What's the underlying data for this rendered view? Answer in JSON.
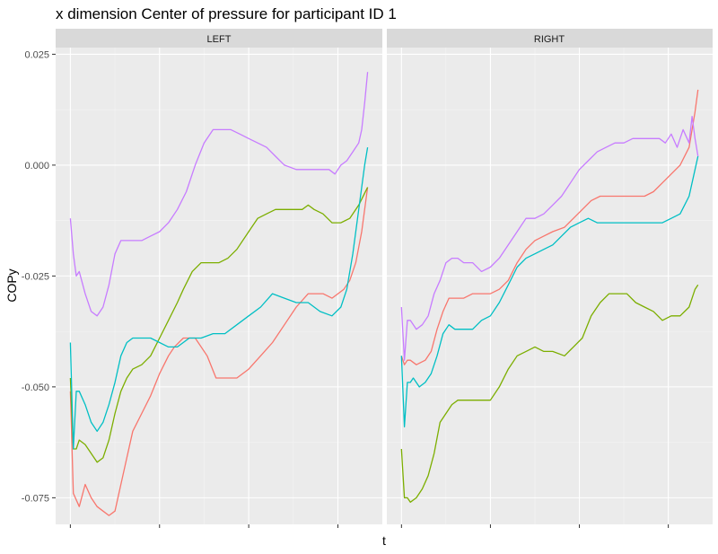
{
  "chart_data": {
    "type": "line",
    "title": "x dimension Center of pressure for participant ID 1",
    "xlabel": "t",
    "ylabel": "COPy",
    "ylim": [
      -0.081,
      0.0265
    ],
    "xlim": [
      0,
      100
    ],
    "y_ticks": [
      0.025,
      0.0,
      -0.025,
      -0.05,
      -0.075
    ],
    "y_tick_labels": [
      "0.025",
      "0.000",
      "-0.025",
      "-0.050",
      "-0.075"
    ],
    "x_ticks": [
      0,
      30,
      60,
      90
    ],
    "grid": true,
    "legend": "none",
    "series_colors": [
      "#F8766D",
      "#7CAE00",
      "#00BFC4",
      "#C77CFF"
    ],
    "panels": [
      {
        "label": "LEFT",
        "series": [
          {
            "color": "#F8766D",
            "x": [
              0,
              1,
              3,
              5,
              7,
              9,
              11,
              13,
              15,
              17,
              19,
              21,
              24,
              27,
              30,
              33,
              35,
              38,
              42,
              46,
              49,
              52,
              56,
              60,
              64,
              68,
              72,
              76,
              80,
              85,
              88,
              92,
              94,
              96,
              98,
              100
            ],
            "y": [
              -0.051,
              -0.074,
              -0.077,
              -0.072,
              -0.075,
              -0.077,
              -0.078,
              -0.079,
              -0.078,
              -0.072,
              -0.066,
              -0.06,
              -0.056,
              -0.052,
              -0.047,
              -0.043,
              -0.041,
              -0.039,
              -0.039,
              -0.043,
              -0.048,
              -0.048,
              -0.048,
              -0.046,
              -0.043,
              -0.04,
              -0.036,
              -0.032,
              -0.029,
              -0.029,
              -0.03,
              -0.028,
              -0.026,
              -0.022,
              -0.015,
              -0.005
            ]
          },
          {
            "color": "#7CAE00",
            "x": [
              0,
              1,
              2,
              3,
              5,
              7,
              9,
              11,
              13,
              15,
              17,
              19,
              21,
              24,
              27,
              30,
              33,
              36,
              38,
              41,
              44,
              47,
              50,
              53,
              56,
              60,
              63,
              66,
              69,
              72,
              75,
              78,
              80,
              82,
              85,
              88,
              91,
              94,
              97,
              100
            ],
            "y": [
              -0.048,
              -0.064,
              -0.064,
              -0.062,
              -0.063,
              -0.065,
              -0.067,
              -0.066,
              -0.062,
              -0.056,
              -0.051,
              -0.048,
              -0.046,
              -0.045,
              -0.043,
              -0.039,
              -0.035,
              -0.031,
              -0.028,
              -0.024,
              -0.022,
              -0.022,
              -0.022,
              -0.021,
              -0.019,
              -0.015,
              -0.012,
              -0.011,
              -0.01,
              -0.01,
              -0.01,
              -0.01,
              -0.009,
              -0.01,
              -0.011,
              -0.013,
              -0.013,
              -0.012,
              -0.009,
              -0.005
            ]
          },
          {
            "color": "#00BFC4",
            "x": [
              0,
              1,
              2,
              3,
              5,
              7,
              9,
              11,
              13,
              15,
              17,
              19,
              21,
              24,
              27,
              30,
              33,
              36,
              40,
              44,
              48,
              52,
              56,
              60,
              64,
              68,
              72,
              76,
              80,
              84,
              88,
              91,
              93,
              95,
              97,
              99,
              100
            ],
            "y": [
              -0.04,
              -0.064,
              -0.051,
              -0.051,
              -0.054,
              -0.058,
              -0.06,
              -0.058,
              -0.054,
              -0.049,
              -0.043,
              -0.04,
              -0.039,
              -0.039,
              -0.039,
              -0.04,
              -0.041,
              -0.041,
              -0.039,
              -0.039,
              -0.038,
              -0.038,
              -0.036,
              -0.034,
              -0.032,
              -0.029,
              -0.03,
              -0.031,
              -0.031,
              -0.033,
              -0.034,
              -0.032,
              -0.028,
              -0.02,
              -0.01,
              0.0,
              0.004
            ]
          },
          {
            "color": "#C77CFF",
            "x": [
              0,
              1,
              2,
              3,
              5,
              7,
              9,
              11,
              13,
              15,
              17,
              19,
              21,
              24,
              27,
              30,
              33,
              36,
              39,
              42,
              45,
              48,
              51,
              54,
              57,
              60,
              63,
              66,
              69,
              72,
              76,
              80,
              84,
              87,
              89,
              91,
              93,
              95,
              97,
              98,
              99,
              100
            ],
            "y": [
              -0.012,
              -0.02,
              -0.025,
              -0.024,
              -0.029,
              -0.033,
              -0.034,
              -0.032,
              -0.027,
              -0.02,
              -0.017,
              -0.017,
              -0.017,
              -0.017,
              -0.016,
              -0.015,
              -0.013,
              -0.01,
              -0.006,
              0.0,
              0.005,
              0.008,
              0.008,
              0.008,
              0.007,
              0.006,
              0.005,
              0.004,
              0.002,
              0.0,
              -0.001,
              -0.001,
              -0.001,
              -0.001,
              -0.002,
              0.0,
              0.001,
              0.003,
              0.005,
              0.008,
              0.014,
              0.021
            ]
          }
        ]
      },
      {
        "label": "RIGHT",
        "series": [
          {
            "color": "#F8766D",
            "x": [
              0,
              1,
              2,
              3,
              5,
              8,
              10,
              12,
              14,
              16,
              18,
              21,
              24,
              27,
              30,
              33,
              36,
              39,
              42,
              45,
              48,
              51,
              55,
              58,
              61,
              64,
              67,
              70,
              73,
              76,
              79,
              82,
              85,
              88,
              91,
              94,
              97,
              99,
              100
            ],
            "y": [
              -0.043,
              -0.045,
              -0.044,
              -0.044,
              -0.045,
              -0.044,
              -0.042,
              -0.037,
              -0.033,
              -0.03,
              -0.03,
              -0.03,
              -0.029,
              -0.029,
              -0.029,
              -0.028,
              -0.026,
              -0.022,
              -0.019,
              -0.017,
              -0.016,
              -0.015,
              -0.014,
              -0.012,
              -0.01,
              -0.008,
              -0.007,
              -0.007,
              -0.007,
              -0.007,
              -0.007,
              -0.007,
              -0.006,
              -0.004,
              -0.002,
              0.0,
              0.004,
              0.012,
              0.017
            ]
          },
          {
            "color": "#7CAE00",
            "x": [
              0,
              1,
              2,
              3,
              5,
              7,
              9,
              11,
              13,
              15,
              17,
              19,
              21,
              24,
              27,
              30,
              33,
              36,
              39,
              42,
              45,
              48,
              51,
              55,
              58,
              61,
              64,
              67,
              70,
              73,
              76,
              79,
              82,
              85,
              88,
              91,
              94,
              97,
              99,
              100
            ],
            "y": [
              -0.064,
              -0.075,
              -0.075,
              -0.076,
              -0.075,
              -0.073,
              -0.07,
              -0.065,
              -0.058,
              -0.056,
              -0.054,
              -0.053,
              -0.053,
              -0.053,
              -0.053,
              -0.053,
              -0.05,
              -0.046,
              -0.043,
              -0.042,
              -0.041,
              -0.042,
              -0.042,
              -0.043,
              -0.041,
              -0.039,
              -0.034,
              -0.031,
              -0.029,
              -0.029,
              -0.029,
              -0.031,
              -0.032,
              -0.033,
              -0.035,
              -0.034,
              -0.034,
              -0.032,
              -0.028,
              -0.027
            ]
          },
          {
            "color": "#00BFC4",
            "x": [
              0,
              1,
              2,
              3,
              4,
              6,
              8,
              10,
              12,
              14,
              16,
              18,
              21,
              24,
              27,
              30,
              33,
              36,
              39,
              42,
              45,
              48,
              51,
              54,
              57,
              60,
              63,
              66,
              69,
              72,
              76,
              80,
              84,
              88,
              91,
              94,
              97,
              99,
              100
            ],
            "y": [
              -0.043,
              -0.059,
              -0.049,
              -0.049,
              -0.048,
              -0.05,
              -0.049,
              -0.047,
              -0.043,
              -0.038,
              -0.036,
              -0.037,
              -0.037,
              -0.037,
              -0.035,
              -0.034,
              -0.031,
              -0.027,
              -0.023,
              -0.021,
              -0.02,
              -0.019,
              -0.018,
              -0.016,
              -0.014,
              -0.013,
              -0.012,
              -0.013,
              -0.013,
              -0.013,
              -0.013,
              -0.013,
              -0.013,
              -0.013,
              -0.012,
              -0.011,
              -0.007,
              -0.001,
              0.002
            ]
          },
          {
            "color": "#C77CFF",
            "x": [
              0,
              1,
              2,
              3,
              5,
              7,
              9,
              11,
              13,
              15,
              17,
              19,
              21,
              24,
              27,
              30,
              33,
              36,
              39,
              42,
              45,
              48,
              51,
              54,
              57,
              60,
              63,
              66,
              69,
              72,
              75,
              78,
              81,
              84,
              87,
              89,
              91,
              93,
              95,
              97,
              98,
              99,
              100
            ],
            "y": [
              -0.032,
              -0.044,
              -0.035,
              -0.035,
              -0.037,
              -0.036,
              -0.034,
              -0.029,
              -0.026,
              -0.022,
              -0.021,
              -0.021,
              -0.022,
              -0.022,
              -0.024,
              -0.023,
              -0.021,
              -0.018,
              -0.015,
              -0.012,
              -0.012,
              -0.011,
              -0.009,
              -0.007,
              -0.004,
              -0.001,
              0.001,
              0.003,
              0.004,
              0.005,
              0.005,
              0.006,
              0.006,
              0.006,
              0.006,
              0.005,
              0.007,
              0.004,
              0.008,
              0.005,
              0.011,
              0.006,
              0.002
            ]
          }
        ]
      }
    ]
  }
}
